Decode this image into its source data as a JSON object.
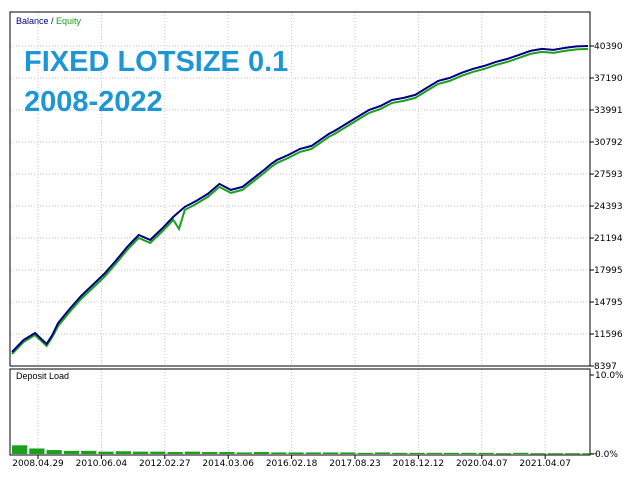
{
  "legend": {
    "balance_label": "Balance",
    "separator": " / ",
    "equity_label": "Equity"
  },
  "overlay": {
    "line1": "FIXED LOTSIZE 0.1",
    "line2": "2008-2022",
    "color": "#1e96d6"
  },
  "colors": {
    "balance": "#000080",
    "equity": "#1aa01a",
    "deposit_load": "#1aa01a",
    "grid": "#c8c8c8"
  },
  "chart_data": [
    {
      "type": "line",
      "legend_placement": "top-left",
      "grid": true,
      "x_tick_labels": [
        "2008.04.29",
        "2010.06.04",
        "2012.02.27",
        "2014.03.06",
        "2016.02.18",
        "2017.08.23",
        "2018.12.12",
        "2020.04.07",
        "2021.04.07"
      ],
      "y_tick_labels": [
        "8397",
        "11596",
        "14795",
        "17995",
        "21194",
        "24393",
        "27593",
        "30792",
        "33991",
        "37190",
        "40390"
      ],
      "ylim": [
        8397,
        40390
      ],
      "x": [
        0,
        2,
        4,
        6,
        7,
        8,
        10,
        12,
        14,
        16,
        18,
        20,
        22,
        24,
        26,
        28,
        29,
        30,
        32,
        34,
        36,
        38,
        40,
        42,
        44,
        45,
        46,
        48,
        50,
        52,
        54,
        55,
        56,
        58,
        60,
        62,
        64,
        65,
        66,
        68,
        70,
        72,
        74,
        76,
        78,
        80,
        82,
        84,
        86,
        88,
        90,
        92,
        94,
        96,
        98,
        100
      ],
      "series": [
        {
          "name": "Balance",
          "values": [
            9800,
            11000,
            11700,
            10600,
            11500,
            12700,
            14100,
            15400,
            16500,
            17600,
            18900,
            20300,
            21500,
            21000,
            22100,
            23300,
            23800,
            24300,
            24900,
            25600,
            26600,
            26000,
            26300,
            27200,
            28100,
            28600,
            29000,
            29500,
            30100,
            30400,
            31200,
            31600,
            31900,
            32600,
            33300,
            34000,
            34400,
            34700,
            35000,
            35200,
            35500,
            36200,
            36900,
            37200,
            37700,
            38100,
            38400,
            38800,
            39100,
            39500,
            39900,
            40100,
            40000,
            40200,
            40350,
            40390
          ]
        },
        {
          "name": "Equity",
          "values": [
            9600,
            10800,
            11500,
            10400,
            11300,
            12400,
            13800,
            15100,
            16200,
            17300,
            18600,
            20000,
            21200,
            20700,
            21800,
            23000,
            22100,
            24000,
            24600,
            25300,
            26300,
            25700,
            26000,
            26900,
            27800,
            28300,
            28700,
            29200,
            29800,
            30100,
            30900,
            31300,
            31600,
            32300,
            33000,
            33700,
            34100,
            34400,
            34700,
            34900,
            35200,
            35900,
            36600,
            36900,
            37400,
            37800,
            38100,
            38500,
            38800,
            39200,
            39600,
            39800,
            39700,
            39900,
            40050,
            40100
          ]
        }
      ]
    },
    {
      "type": "bar",
      "title": "Deposit Load",
      "y_tick_labels": [
        "10.0%",
        "0.0%"
      ],
      "ylim": [
        0,
        10
      ],
      "x": [
        0,
        3,
        6,
        9,
        12,
        15,
        18,
        21,
        24,
        27,
        30,
        33,
        36,
        39,
        42,
        45,
        48,
        51,
        54,
        57,
        60,
        63,
        66,
        69,
        72,
        75,
        78,
        81,
        84,
        87,
        90,
        93,
        96,
        99
      ],
      "values": [
        1.1,
        0.7,
        0.5,
        0.4,
        0.4,
        0.3,
        0.35,
        0.3,
        0.3,
        0.25,
        0.3,
        0.25,
        0.25,
        0.2,
        0.25,
        0.2,
        0.2,
        0.2,
        0.2,
        0.2,
        0.15,
        0.2,
        0.15,
        0.15,
        0.15,
        0.15,
        0.15,
        0.15,
        0.1,
        0.15,
        0.1,
        0.1,
        0.1,
        0.1
      ]
    }
  ]
}
